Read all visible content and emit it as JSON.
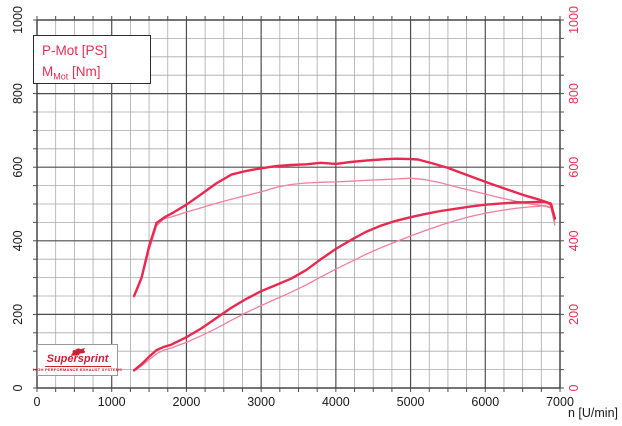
{
  "legend": {
    "power_label": "P-Mot [PS]",
    "torque_base": "M",
    "torque_sub": "Mot",
    "torque_unit": " [Nm]"
  },
  "logo": {
    "brand": "Supersprint",
    "tagline": "HIGH PERFORMANCE EXHAUST SYSTEMS"
  },
  "axes": {
    "left": {
      "tick_labels": [
        "0",
        "200",
        "400",
        "600",
        "800",
        "1000"
      ]
    },
    "right": {
      "tick_labels": [
        "0",
        "200",
        "400",
        "600",
        "800",
        "1000"
      ]
    },
    "bottom": {
      "tick_labels": [
        "0",
        "1000",
        "2000",
        "3000",
        "4000",
        "5000",
        "6000",
        "7000"
      ],
      "axis_label": "n [U/min]"
    }
  },
  "colors": {
    "curve_strong": "#e82a50",
    "curve_light": "#f2809c",
    "grid_major": "#4d4d4d",
    "grid_minor": "#aaaaaa",
    "plot_border": "#3a3a3a",
    "axis_text_left": "#1a1a1a",
    "axis_text_right": "#e62e52",
    "axis_text_bottom": "#1a1a1a",
    "legend_text": "#e62e52",
    "logo_red": "#cc2033"
  },
  "chart_data": {
    "type": "line",
    "title": "",
    "xlabel": "n [U/min]",
    "ylabel_left": "P-Mot [PS] / M_Mot [Nm]",
    "x_range": [
      0,
      7000
    ],
    "y_range": [
      0,
      1000
    ],
    "x_major_step": 1000,
    "x_minor_step": 250,
    "y_major_step": 200,
    "y_minor_step": 50,
    "grid": "on",
    "legend_position": "top-left",
    "series": [
      {
        "id": "torque-run1",
        "name": "M_Mot [Nm] - run 1 (thick)",
        "style": "thick",
        "points": [
          [
            1300,
            250
          ],
          [
            1400,
            300
          ],
          [
            1500,
            385
          ],
          [
            1600,
            448
          ],
          [
            1700,
            463
          ],
          [
            1800,
            474
          ],
          [
            2000,
            498
          ],
          [
            2200,
            527
          ],
          [
            2400,
            556
          ],
          [
            2600,
            580
          ],
          [
            2800,
            590
          ],
          [
            3000,
            597
          ],
          [
            3200,
            603
          ],
          [
            3400,
            606
          ],
          [
            3600,
            608
          ],
          [
            3800,
            612
          ],
          [
            4000,
            609
          ],
          [
            4200,
            614
          ],
          [
            4400,
            618
          ],
          [
            4600,
            621
          ],
          [
            4800,
            623
          ],
          [
            5000,
            622
          ],
          [
            5100,
            621
          ],
          [
            5300,
            610
          ],
          [
            5500,
            598
          ],
          [
            5700,
            583
          ],
          [
            5900,
            568
          ],
          [
            6100,
            553
          ],
          [
            6300,
            539
          ],
          [
            6500,
            525
          ],
          [
            6700,
            513
          ],
          [
            6820,
            505
          ],
          [
            6880,
            498
          ],
          [
            6930,
            462
          ]
        ]
      },
      {
        "id": "torque-run2",
        "name": "M_Mot [Nm] - run 2 (thin)",
        "style": "thin",
        "points": [
          [
            1300,
            248
          ],
          [
            1400,
            295
          ],
          [
            1500,
            375
          ],
          [
            1600,
            440
          ],
          [
            1700,
            460
          ],
          [
            1800,
            465
          ],
          [
            2000,
            478
          ],
          [
            2200,
            490
          ],
          [
            2400,
            502
          ],
          [
            2600,
            513
          ],
          [
            2800,
            523
          ],
          [
            3000,
            533
          ],
          [
            3200,
            545
          ],
          [
            3400,
            553
          ],
          [
            3600,
            557
          ],
          [
            3800,
            559
          ],
          [
            4000,
            560
          ],
          [
            4200,
            562
          ],
          [
            4400,
            564
          ],
          [
            4600,
            566
          ],
          [
            4800,
            568
          ],
          [
            5000,
            570
          ],
          [
            5200,
            566
          ],
          [
            5400,
            558
          ],
          [
            5600,
            547
          ],
          [
            5800,
            537
          ],
          [
            6000,
            527
          ],
          [
            6200,
            517
          ],
          [
            6400,
            508
          ],
          [
            6600,
            500
          ],
          [
            6800,
            494
          ],
          [
            6880,
            489
          ],
          [
            6930,
            450
          ]
        ]
      },
      {
        "id": "power-run1",
        "name": "P-Mot [PS] - run 1 (thick)",
        "style": "thick",
        "points": [
          [
            1300,
            48
          ],
          [
            1400,
            65
          ],
          [
            1500,
            85
          ],
          [
            1600,
            103
          ],
          [
            1700,
            112
          ],
          [
            1800,
            118
          ],
          [
            2000,
            138
          ],
          [
            2200,
            162
          ],
          [
            2400,
            190
          ],
          [
            2600,
            218
          ],
          [
            2800,
            242
          ],
          [
            3000,
            263
          ],
          [
            3200,
            280
          ],
          [
            3400,
            297
          ],
          [
            3600,
            320
          ],
          [
            3800,
            350
          ],
          [
            4000,
            378
          ],
          [
            4200,
            402
          ],
          [
            4400,
            424
          ],
          [
            4600,
            441
          ],
          [
            4800,
            454
          ],
          [
            5000,
            464
          ],
          [
            5200,
            473
          ],
          [
            5400,
            481
          ],
          [
            5600,
            487
          ],
          [
            5800,
            493
          ],
          [
            6000,
            498
          ],
          [
            6200,
            501
          ],
          [
            6400,
            504
          ],
          [
            6600,
            505
          ],
          [
            6800,
            506
          ],
          [
            6880,
            501
          ],
          [
            6930,
            460
          ]
        ]
      },
      {
        "id": "power-run2",
        "name": "P-Mot [PS] - run 2 (thin)",
        "style": "thin",
        "points": [
          [
            1300,
            46
          ],
          [
            1400,
            60
          ],
          [
            1500,
            77
          ],
          [
            1600,
            93
          ],
          [
            1700,
            103
          ],
          [
            1800,
            109
          ],
          [
            2000,
            124
          ],
          [
            2200,
            142
          ],
          [
            2400,
            162
          ],
          [
            2600,
            184
          ],
          [
            2800,
            205
          ],
          [
            3000,
            224
          ],
          [
            3200,
            242
          ],
          [
            3400,
            260
          ],
          [
            3600,
            280
          ],
          [
            3800,
            302
          ],
          [
            4000,
            323
          ],
          [
            4200,
            343
          ],
          [
            4400,
            363
          ],
          [
            4600,
            381
          ],
          [
            4800,
            397
          ],
          [
            5000,
            413
          ],
          [
            5200,
            428
          ],
          [
            5400,
            442
          ],
          [
            5600,
            455
          ],
          [
            5800,
            466
          ],
          [
            6000,
            475
          ],
          [
            6200,
            482
          ],
          [
            6400,
            488
          ],
          [
            6600,
            492
          ],
          [
            6800,
            495
          ],
          [
            6880,
            491
          ],
          [
            6930,
            443
          ]
        ]
      }
    ]
  }
}
